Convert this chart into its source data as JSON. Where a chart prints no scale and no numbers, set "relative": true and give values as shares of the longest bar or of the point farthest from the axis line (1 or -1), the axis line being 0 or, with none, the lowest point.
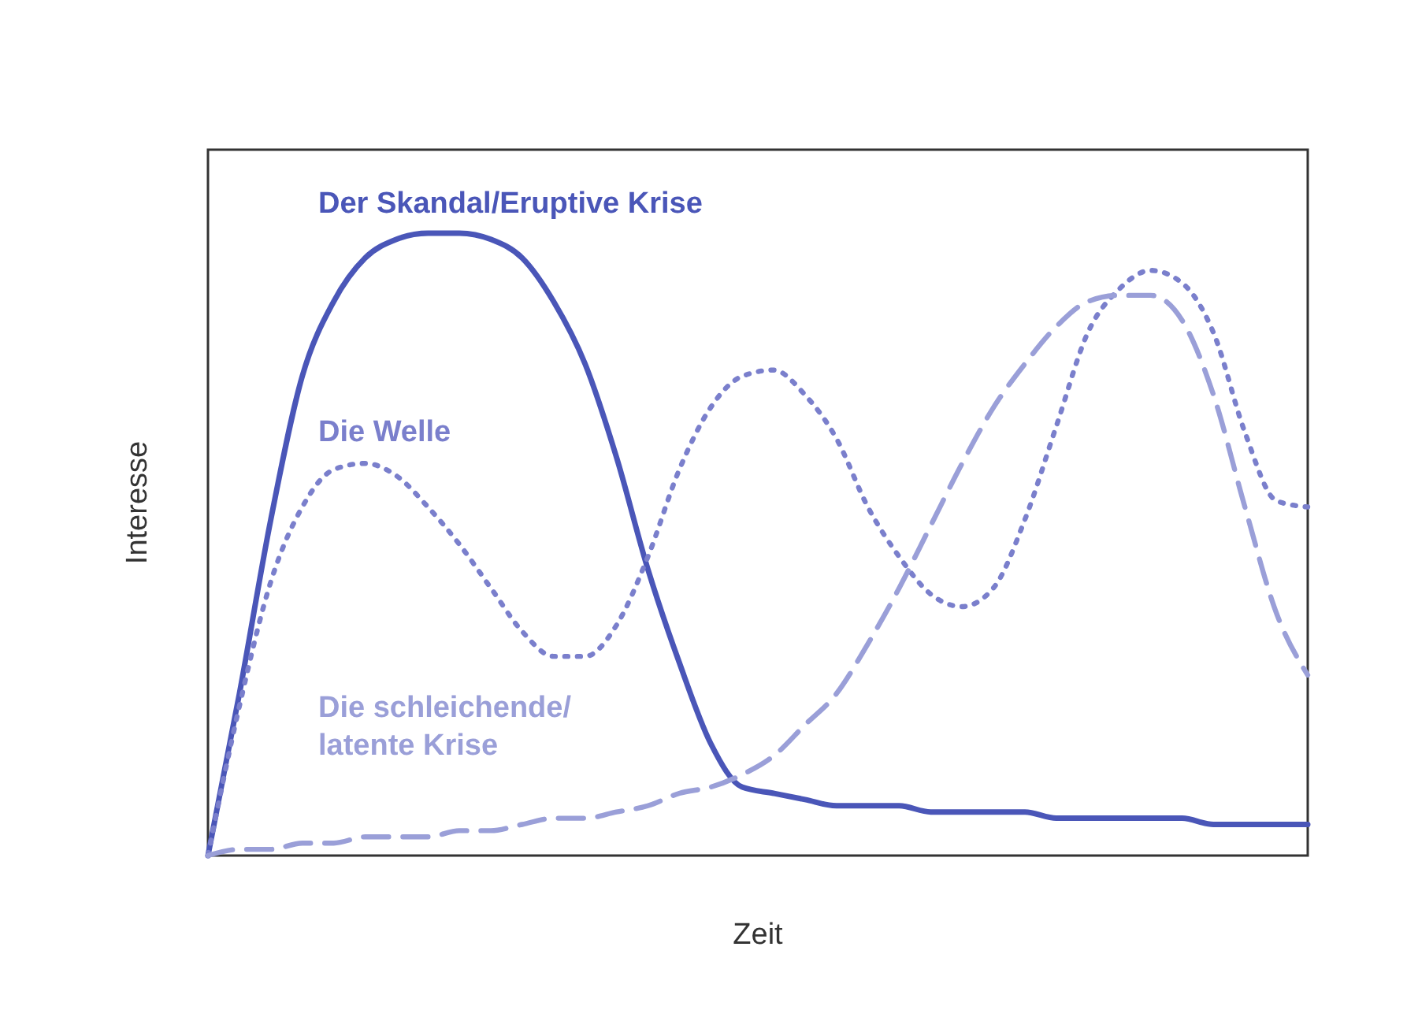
{
  "chart_data": {
    "type": "line",
    "relative": true,
    "xlabel": "Zeit",
    "ylabel": "Interesse",
    "marker": "none",
    "categories": [
      null,
      null,
      null,
      null,
      null,
      null,
      null,
      null,
      null,
      null,
      null,
      null,
      null,
      null,
      null,
      null,
      null,
      null,
      null,
      null,
      null,
      null,
      null,
      null,
      null,
      null,
      null,
      null,
      null,
      null,
      null,
      null,
      null,
      null,
      null,
      null
    ],
    "series": [
      {
        "name": "Der Skandal/Eruptive Krise",
        "color": "#4a56b8",
        "line_style": "solid",
        "values": [
          0,
          0.26,
          0.54,
          0.77,
          0.89,
          0.96,
          0.99,
          1,
          1,
          0.99,
          0.96,
          0.89,
          0.79,
          0.64,
          0.46,
          0.31,
          0.18,
          0.11,
          0.1,
          0.09,
          0.08,
          0.08,
          0.08,
          0.07,
          0.07,
          0.07,
          0.07,
          0.06,
          0.06,
          0.06,
          0.06,
          0.06,
          0.05,
          0.05,
          0.05,
          0.05
        ]
      },
      {
        "name": "Die Welle",
        "color": "#7a7fcc",
        "line_style": "dotted",
        "values": [
          0,
          0.24,
          0.44,
          0.56,
          0.62,
          0.63,
          0.61,
          0.56,
          0.5,
          0.43,
          0.36,
          0.32,
          0.32,
          0.37,
          0.48,
          0.62,
          0.72,
          0.77,
          0.78,
          0.74,
          0.67,
          0.56,
          0.48,
          0.42,
          0.4,
          0.43,
          0.54,
          0.69,
          0.84,
          0.91,
          0.94,
          0.92,
          0.84,
          0.68,
          0.57,
          0.56
        ]
      },
      {
        "name": "Die schleichende/\nlatente Krise",
        "color": "#9a9fd8",
        "line_style": "dashed",
        "values": [
          0,
          0.01,
          0.01,
          0.02,
          0.02,
          0.03,
          0.03,
          0.03,
          0.04,
          0.04,
          0.05,
          0.06,
          0.06,
          0.07,
          0.08,
          0.1,
          0.11,
          0.13,
          0.16,
          0.21,
          0.26,
          0.34,
          0.43,
          0.53,
          0.63,
          0.72,
          0.79,
          0.85,
          0.89,
          0.9,
          0.9,
          0.86,
          0.74,
          0.56,
          0.39,
          0.29
        ]
      }
    ]
  }
}
